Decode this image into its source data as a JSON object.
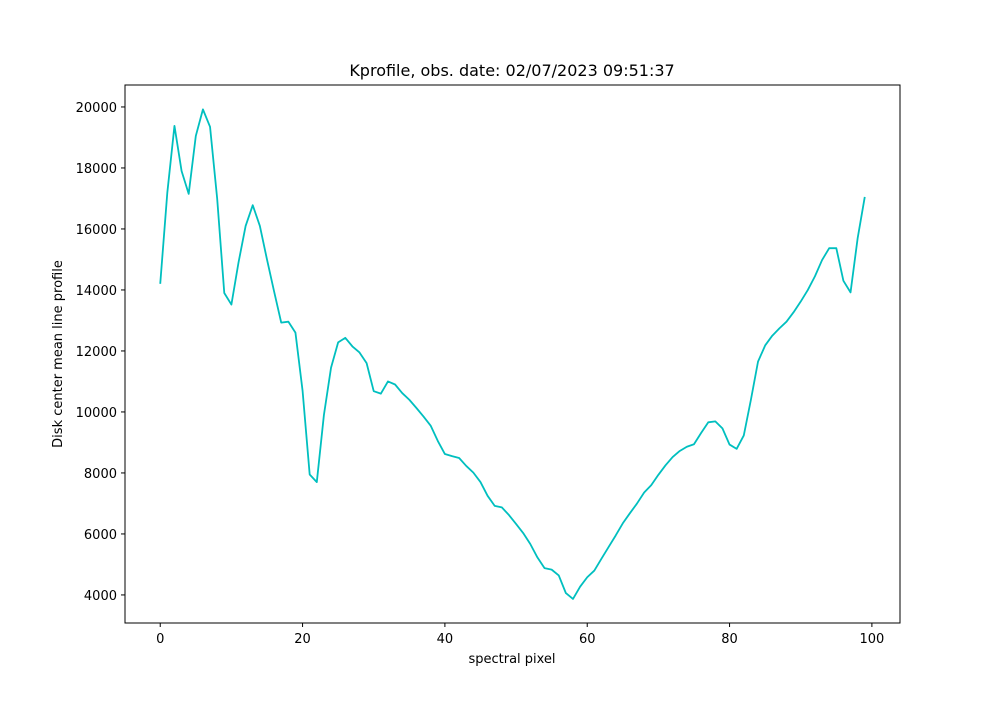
{
  "chart_data": {
    "type": "line",
    "title": "Kprofile, obs. date: 02/07/2023 09:51:37",
    "x_label": "spectral pixel",
    "y_label": "Disk center mean line profile",
    "x": [
      0,
      1,
      2,
      3,
      4,
      5,
      6,
      7,
      8,
      9,
      10,
      11,
      12,
      13,
      14,
      15,
      16,
      17,
      18,
      19,
      20,
      21,
      22,
      23,
      24,
      25,
      26,
      27,
      28,
      29,
      30,
      31,
      32,
      33,
      34,
      35,
      36,
      37,
      38,
      39,
      40,
      41,
      42,
      43,
      44,
      45,
      46,
      47,
      48,
      49,
      50,
      51,
      52,
      53,
      54,
      55,
      56,
      57,
      58,
      59,
      60,
      61,
      62,
      63,
      64,
      65,
      66,
      67,
      68,
      69,
      70,
      71,
      72,
      73,
      74,
      75,
      76,
      77,
      78,
      79,
      80,
      81,
      82,
      83,
      84,
      85,
      86,
      87,
      88,
      89,
      90,
      91,
      92,
      93,
      94,
      95,
      96,
      97,
      98,
      99
    ],
    "series": [
      {
        "color": "#00bfbf",
        "values": [
          14200,
          17200,
          19380,
          17900,
          17150,
          19050,
          19920,
          19350,
          17000,
          13900,
          13520,
          14900,
          16100,
          16780,
          16100,
          15000,
          13950,
          12930,
          12960,
          12600,
          10700,
          7950,
          7700,
          9900,
          11450,
          12280,
          12430,
          12150,
          11950,
          11600,
          10680,
          10600,
          11000,
          10900,
          10620,
          10400,
          10130,
          9850,
          9550,
          9050,
          8620,
          8550,
          8490,
          8230,
          8010,
          7700,
          7250,
          6920,
          6870,
          6620,
          6330,
          6030,
          5670,
          5230,
          4880,
          4830,
          4640,
          4060,
          3870,
          4270,
          4580,
          4800,
          5190,
          5570,
          5950,
          6350,
          6680,
          7000,
          7360,
          7600,
          7940,
          8250,
          8520,
          8720,
          8860,
          8940,
          9310,
          9660,
          9690,
          9460,
          8930,
          8790,
          9230,
          10400,
          11650,
          12180,
          12500,
          12740,
          12960,
          13270,
          13620,
          14000,
          14450,
          14980,
          15370,
          15370,
          14300,
          13920,
          15700,
          17050
        ]
      }
    ],
    "xlim": [
      -4.95,
      103.95
    ],
    "ylim": [
      3080,
      20720
    ],
    "xticks": [
      0,
      20,
      40,
      60,
      80,
      100
    ],
    "yticks": [
      4000,
      6000,
      8000,
      10000,
      12000,
      14000,
      16000,
      18000,
      20000
    ],
    "grid": false
  }
}
